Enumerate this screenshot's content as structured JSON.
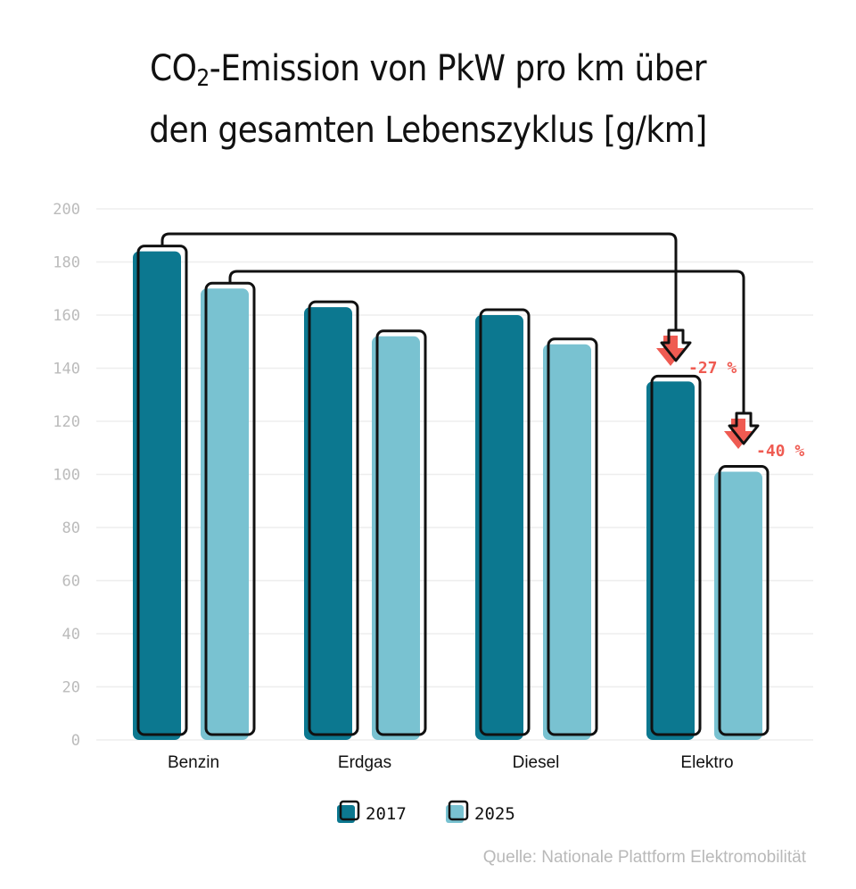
{
  "title": {
    "line1_prefix": "CO",
    "line1_sub": "2",
    "line1_suffix": "-Emission von PkW pro km über",
    "line2": "den gesamten Lebenszyklus [g/km]"
  },
  "source": "Quelle: Nationale Plattform Elektromobilität",
  "colors": {
    "s2017": "#0c7890",
    "s2025": "#79c2d1",
    "arrow": "#ef5b52",
    "grid": "#eeeeee",
    "axis_text": "#bbbbbb"
  },
  "chart_data": {
    "type": "bar",
    "categories": [
      "Benzin",
      "Erdgas",
      "Diesel",
      "Elektro"
    ],
    "series": [
      {
        "name": "2017",
        "values": [
          184,
          163,
          160,
          135
        ]
      },
      {
        "name": "2025",
        "values": [
          170,
          152,
          149,
          101
        ]
      }
    ],
    "ylim": [
      0,
      200
    ],
    "yticks": [
      0,
      20,
      40,
      60,
      80,
      100,
      120,
      140,
      160,
      180,
      200
    ],
    "grid": true,
    "legend": "bottom-center",
    "annotations": [
      {
        "label": "-27 %",
        "from": "Benzin 2017",
        "to": "Elektro 2017"
      },
      {
        "label": "-40 %",
        "from": "Benzin 2025",
        "to": "Elektro 2025"
      }
    ]
  }
}
